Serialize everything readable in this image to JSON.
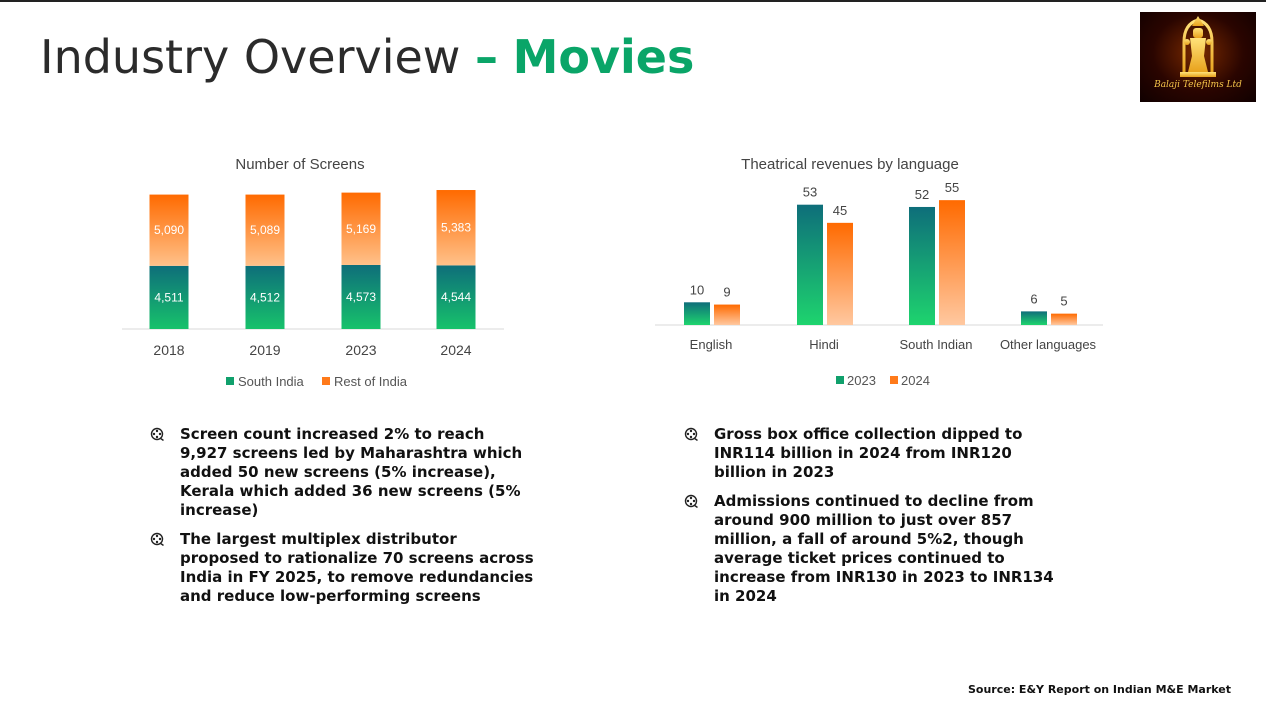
{
  "header": {
    "title_main": "Industry Overview",
    "title_dash": "–",
    "title_accent": "Movies"
  },
  "logo": {
    "text": "Balaji Telefilms Ltd",
    "icon": "deity-figure-logo"
  },
  "colors": {
    "accent": "#0aa568",
    "south_india_top": "#0e6e7a",
    "south_india_bottom": "#17c26b",
    "rest_of_india_top": "#ff6a00",
    "rest_of_india_bottom": "#ffc18a",
    "y2023_top": "#0e6e7a",
    "y2023_bottom": "#1ed46e",
    "y2024_top": "#ff6a00",
    "y2024_bottom": "#ffc8a0"
  },
  "chart_data": [
    {
      "type": "bar",
      "stacked": true,
      "title": "Number of Screens",
      "categories": [
        "2018",
        "2019",
        "2023",
        "2024"
      ],
      "series": [
        {
          "name": "South India",
          "values": [
            4511,
            4512,
            4573,
            4544
          ],
          "labels": [
            "4,511",
            "4,512",
            "4,573",
            "4,544"
          ]
        },
        {
          "name": "Rest of India",
          "values": [
            5090,
            5089,
            5169,
            5383
          ],
          "labels": [
            "5,090",
            "5,089",
            "5,169",
            "5,383"
          ]
        }
      ],
      "ylim": [
        0,
        10000
      ],
      "grid": false,
      "legend": "bottom"
    },
    {
      "type": "bar",
      "title": "Theatrical revenues by language",
      "categories": [
        "English",
        "Hindi",
        "South Indian",
        "Other languages"
      ],
      "series": [
        {
          "name": "2023",
          "values": [
            10,
            53,
            52,
            6
          ]
        },
        {
          "name": "2024",
          "values": [
            9,
            45,
            55,
            5
          ]
        }
      ],
      "ylim": [
        0,
        60
      ],
      "grid": false,
      "legend": "bottom"
    }
  ],
  "left_bullets": [
    "Screen count increased 2% to reach 9,927 screens led by Maharashtra which added 50 new screens (5% increase), Kerala which added 36 new screens (5% increase)",
    "The largest multiplex distributor proposed to rationalize 70 screens across India in FY 2025, to remove redundancies and reduce low-performing screens"
  ],
  "right_bullets": [
    "Gross box office collection dipped to INR114 billion in 2024 from INR120 billion in 2023",
    "Admissions continued to decline from around 900 million to just over 857 million, a fall of around 5%2, though average ticket prices continued to increase from INR130 in 2023 to INR134 in 2024"
  ],
  "bullet_icon": "film-reel-icon",
  "source": "Source: E&Y Report on Indian M&E Market"
}
